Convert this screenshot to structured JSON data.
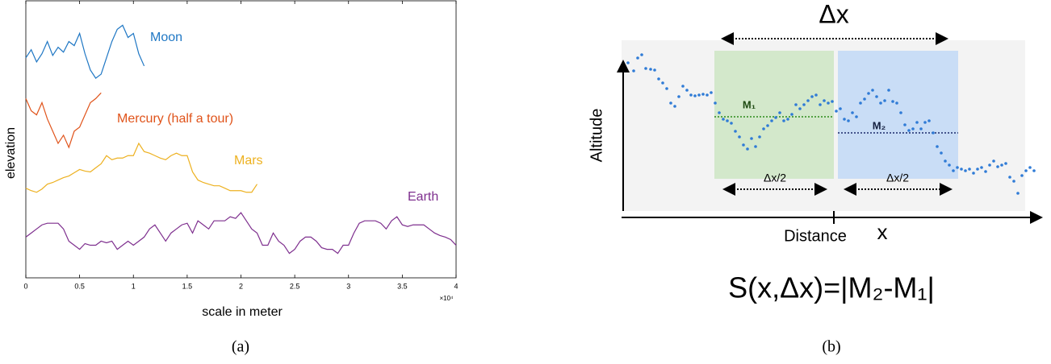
{
  "chart_data": {
    "type": "line",
    "xlabel": "scale in meter",
    "ylabel": "elevation",
    "x_multiplier": "×10⁴",
    "caption": "(a)",
    "x": [
      0,
      0.05,
      0.1,
      0.15,
      0.2,
      0.25,
      0.3,
      0.35,
      0.4,
      0.45,
      0.5,
      0.55,
      0.6,
      0.65,
      0.7,
      0.75,
      0.8,
      0.85,
      0.9,
      0.95,
      1,
      1.05,
      1.1,
      1.15,
      1.2,
      1.25,
      1.3,
      1.35,
      1.4,
      1.45,
      1.5,
      1.55,
      1.6,
      1.65,
      1.7,
      1.75,
      1.8,
      1.85,
      1.9,
      1.95,
      2,
      2.05,
      2.1,
      2.15,
      2.2,
      2.25,
      2.3,
      2.35,
      2.4,
      2.45,
      2.5,
      2.55,
      2.6,
      2.65,
      2.7,
      2.75,
      2.8,
      2.85,
      2.9,
      2.95,
      3,
      3.05,
      3.1,
      3.15,
      3.2,
      3.25,
      3.3,
      3.35,
      3.4,
      3.45,
      3.5,
      3.55,
      3.6,
      3.65,
      3.7,
      3.75,
      3.8,
      3.85,
      3.9,
      3.95,
      4
    ],
    "xlim": [
      0,
      4
    ],
    "xticks": [
      0,
      0.5,
      1,
      1.5,
      2,
      2.5,
      3,
      3.5,
      4
    ],
    "ylim": [
      0,
      34
    ],
    "series": [
      {
        "name": "Moon",
        "color": "#1f77c4",
        "values": [
          27,
          28,
          26.5,
          27.5,
          29,
          27.3,
          28.3,
          27.7,
          29,
          28.5,
          30,
          27.5,
          25.5,
          24.5,
          25,
          27,
          29,
          30.5,
          31,
          29.5,
          30,
          27.5,
          26,
          null,
          null,
          null,
          null,
          null,
          null,
          null,
          null,
          null,
          null,
          null,
          null,
          null,
          null,
          null,
          null,
          null,
          null,
          null,
          null,
          null,
          null,
          null,
          null,
          null,
          null,
          null,
          null,
          null,
          null,
          null,
          null,
          null,
          null,
          null,
          null,
          null,
          null,
          null,
          null,
          null,
          null,
          null,
          null,
          null,
          null,
          null,
          null,
          null,
          null,
          null,
          null,
          null,
          null,
          null,
          null,
          null,
          null
        ]
      },
      {
        "name": "Mercury (half a tour)",
        "color": "#e0531a",
        "values": [
          22,
          20.5,
          20,
          21.5,
          19.5,
          18,
          16.5,
          17.5,
          16,
          18,
          18.5,
          20,
          21.5,
          22,
          22.7,
          null,
          null,
          null,
          null,
          null,
          null,
          null,
          null,
          null,
          null,
          null,
          null,
          null,
          null,
          null,
          null,
          null,
          null,
          null,
          null,
          null,
          null,
          null,
          null,
          null,
          null,
          null,
          null,
          null,
          null,
          null,
          null,
          null,
          null,
          null,
          null,
          null,
          null,
          null,
          null,
          null,
          null,
          null,
          null,
          null,
          null,
          null,
          null,
          null,
          null,
          null,
          null,
          null,
          null,
          null,
          null,
          null,
          null,
          null,
          null,
          null,
          null,
          null,
          null,
          null,
          null
        ]
      },
      {
        "name": "Mars",
        "color": "#edb120",
        "values": [
          11,
          10.7,
          10.5,
          10.9,
          11.5,
          11.7,
          12,
          12.3,
          12.5,
          12.9,
          13.3,
          13.1,
          13,
          13.5,
          14,
          15,
          14.5,
          14.7,
          14.7,
          15,
          15,
          16.5,
          15.5,
          15.3,
          15,
          14.7,
          14.5,
          15,
          15.3,
          15,
          15,
          13,
          12,
          11.7,
          11.5,
          11.3,
          11.3,
          11,
          10.7,
          10.7,
          10.7,
          10.5,
          10.5,
          11.5,
          null,
          null,
          null,
          null,
          null,
          null,
          null,
          null,
          null,
          null,
          null,
          null,
          null,
          null,
          null,
          null,
          null,
          null,
          null,
          null,
          null,
          null,
          null,
          null,
          null,
          null,
          null,
          null,
          null,
          null,
          null,
          null,
          null,
          null,
          null,
          null,
          null
        ]
      },
      {
        "name": "Earth",
        "color": "#7e2f8e",
        "values": [
          5,
          5.5,
          6,
          6.5,
          6.7,
          6.7,
          6.7,
          6,
          4.5,
          4,
          3.5,
          4.2,
          4,
          4,
          4.5,
          4.3,
          4.5,
          3.5,
          4,
          4.5,
          4,
          4.5,
          5,
          6,
          6.5,
          5.5,
          4.5,
          5.5,
          6,
          6.5,
          6.7,
          5.5,
          7,
          6.5,
          6,
          7,
          7,
          7,
          7.5,
          7.3,
          8,
          7,
          6,
          5.5,
          4,
          4,
          5.5,
          4.5,
          4,
          3,
          3.5,
          4.5,
          5,
          5,
          4.5,
          3.7,
          3.5,
          3.5,
          3,
          4,
          4,
          5.5,
          6.7,
          7,
          7,
          7,
          6.7,
          6,
          7,
          7.5,
          6.5,
          6.3,
          6.5,
          6.5,
          6.5,
          6,
          5.5,
          5.2,
          5,
          4.7,
          4
        ]
      }
    ]
  },
  "panel_b": {
    "delta_x": "Δx",
    "y_axis": "Altitude",
    "x_axis": "Distance",
    "x_mark": "x",
    "m1": "M₁",
    "m2": "M₂",
    "half_left": "Δx/2",
    "half_right": "Δx/2",
    "formula": "S(x,Δx)=|M₂-M₁|",
    "caption": "(b)"
  }
}
